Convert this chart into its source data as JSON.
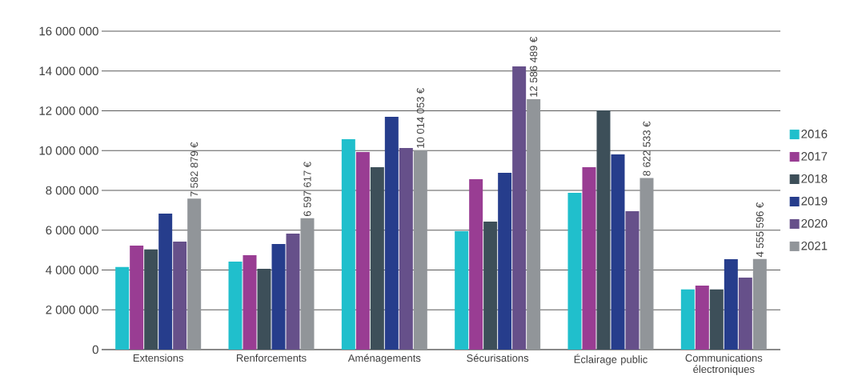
{
  "chart_data": {
    "type": "bar",
    "categories": [
      "Extensions",
      "Renforcements",
      "Aménagements",
      "Sécurisations",
      "Éclairage public",
      "Communications électroniques"
    ],
    "series": [
      {
        "name": "2016",
        "color": "#20bfcc",
        "values": [
          4150000,
          4420000,
          10570000,
          5950000,
          7880000,
          3020000
        ]
      },
      {
        "name": "2017",
        "color": "#993d93",
        "values": [
          5230000,
          4740000,
          9930000,
          8560000,
          9170000,
          3220000
        ]
      },
      {
        "name": "2018",
        "color": "#3d4f59",
        "values": [
          5030000,
          4060000,
          9170000,
          6430000,
          12020000,
          3020000
        ]
      },
      {
        "name": "2019",
        "color": "#263d8c",
        "values": [
          6830000,
          5310000,
          11700000,
          8880000,
          9810000,
          4540000
        ]
      },
      {
        "name": "2020",
        "color": "#66508a",
        "values": [
          5430000,
          5830000,
          10130000,
          14230000,
          6950000,
          3620000
        ]
      },
      {
        "name": "2021",
        "color": "#919599",
        "values": [
          7582879,
          6597617,
          10014053,
          12586489,
          8622533,
          4555596
        ],
        "value_labels": [
          "7 582 879 €",
          "6 597 617 €",
          "10 014 053 €",
          "12 586 489 €",
          "8 622 533 €",
          "4 555 596 €"
        ]
      }
    ],
    "ylim": [
      0,
      16000000
    ],
    "yticks": [
      {
        "value": 0,
        "label": "0"
      },
      {
        "value": 2000000,
        "label": "2 000 000"
      },
      {
        "value": 4000000,
        "label": "4 000 000"
      },
      {
        "value": 6000000,
        "label": "6 000 000"
      },
      {
        "value": 8000000,
        "label": "8 000 000"
      },
      {
        "value": 10000000,
        "label": "10 000 000"
      },
      {
        "value": 12000000,
        "label": "12 000 000"
      },
      {
        "value": 14000000,
        "label": "14 000 000"
      },
      {
        "value": 16000000,
        "label": "16 000 000"
      }
    ],
    "grid": "y",
    "legend": "right"
  }
}
